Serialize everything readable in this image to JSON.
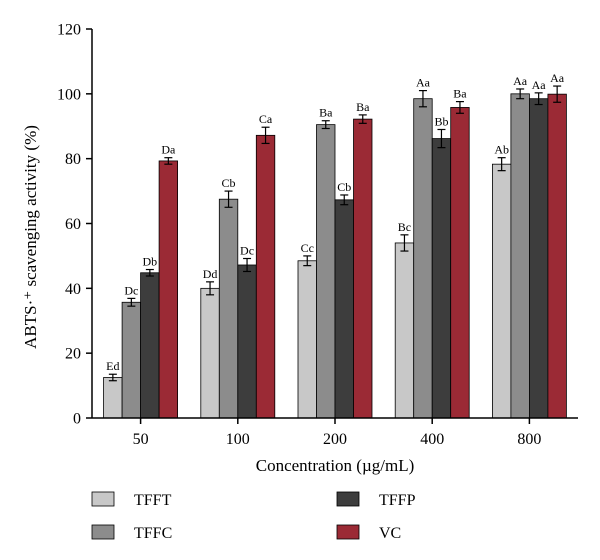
{
  "chart_data": {
    "type": "bar",
    "xlabel": "Concentration (µg/mL)",
    "ylabel": "ABTS·⁺ scavenging activity (%)",
    "ylim": [
      0,
      120
    ],
    "yticks": [
      0,
      20,
      40,
      60,
      80,
      100,
      120
    ],
    "categories": [
      "50",
      "100",
      "200",
      "400",
      "800"
    ],
    "legend_placement": "bottom",
    "series": [
      {
        "name": "TFFT",
        "color": "#c8c8c8",
        "values": [
          12.5,
          40.0,
          48.5,
          54.0,
          78.3
        ],
        "errors": [
          1.0,
          2.0,
          1.5,
          2.5,
          2.0
        ],
        "labels": [
          "Ed",
          "Dd",
          "Cc",
          "Bc",
          "Ab"
        ]
      },
      {
        "name": "TFFC",
        "color": "#8c8c8c",
        "values": [
          35.7,
          67.5,
          90.5,
          98.5,
          100.0
        ],
        "errors": [
          1.2,
          2.5,
          1.2,
          2.5,
          1.5
        ],
        "labels": [
          "Dc",
          "Cb",
          "Ba",
          "Aa",
          "Aa"
        ]
      },
      {
        "name": "TFFP",
        "color": "#3d3d3d",
        "values": [
          44.8,
          47.2,
          67.3,
          86.2,
          98.5
        ],
        "errors": [
          1.0,
          2.0,
          1.5,
          2.8,
          1.8
        ],
        "labels": [
          "Db",
          "Dc",
          "Cb",
          "Bb",
          "Aa"
        ]
      },
      {
        "name": "VC",
        "color": "#9b2a35",
        "values": [
          79.3,
          87.2,
          92.2,
          95.8,
          99.9
        ],
        "errors": [
          1.0,
          2.5,
          1.3,
          1.8,
          2.5
        ],
        "labels": [
          "Da",
          "Ca",
          "Ba",
          "Ba",
          "Aa"
        ]
      }
    ]
  }
}
